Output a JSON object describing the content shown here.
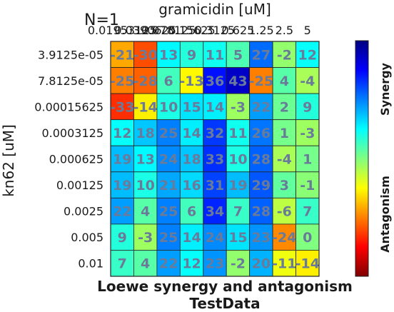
{
  "chart_data": {
    "type": "heatmap",
    "title_lines": [
      "Loewe synergy and antagonism",
      "TestData"
    ],
    "n_label": "N=1",
    "xlabel": "gramicidin [uM]",
    "ylabel": "kn62 [uM]",
    "x_ticks": [
      "0.0195",
      "0.039",
      "0.078",
      "0.156",
      "0.3125",
      "0.625",
      "1.25",
      "2.5",
      "5"
    ],
    "x_ticks_display": [
      "0.01953125",
      "0.0390625",
      "0.078125",
      "0.15625",
      "0.3125",
      "0.625",
      "1.25",
      "2.5",
      "5"
    ],
    "y_ticks": [
      "3.9125e-05",
      "7.8125e-05",
      "0.00015625",
      "0.0003125",
      "0.000625",
      "0.00125",
      "0.0025",
      "0.005",
      "0.01"
    ],
    "values": [
      [
        -21,
        -30,
        13,
        9,
        11,
        5,
        27,
        -2,
        12
      ],
      [
        -25,
        -28,
        6,
        -13,
        36,
        43,
        -25,
        4,
        -4
      ],
      [
        -33,
        -14,
        10,
        15,
        14,
        -3,
        22,
        2,
        9
      ],
      [
        12,
        18,
        25,
        14,
        32,
        11,
        26,
        1,
        -3
      ],
      [
        19,
        13,
        24,
        18,
        33,
        10,
        28,
        -4,
        1
      ],
      [
        19,
        10,
        21,
        16,
        31,
        19,
        29,
        3,
        -1
      ],
      [
        22,
        4,
        25,
        6,
        34,
        7,
        28,
        -6,
        7
      ],
      [
        9,
        -3,
        25,
        14,
        24,
        15,
        23,
        -24,
        0
      ],
      [
        7,
        4,
        22,
        12,
        23,
        -2,
        20,
        -11,
        -14
      ]
    ],
    "color_range": [
      -50,
      50
    ],
    "colormap": "jet",
    "colorbar_labels": {
      "top": "Synergy",
      "bottom": "Antagonism"
    }
  }
}
